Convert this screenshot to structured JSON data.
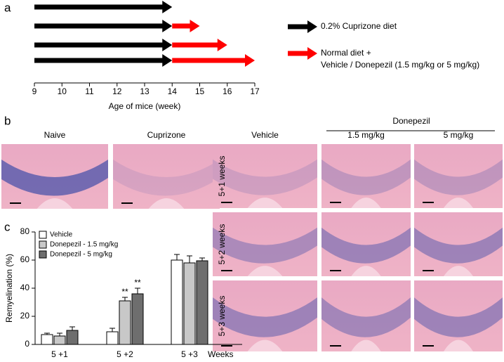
{
  "panel_labels": [
    "a",
    "b",
    "c"
  ],
  "chart_data": [
    {
      "type": "gantt",
      "xlabel": "Age of mice (week)",
      "xlim": [
        9,
        17
      ],
      "xticks": [
        9,
        10,
        11,
        12,
        13,
        14,
        15,
        16,
        17
      ],
      "series": [
        {
          "name": [
            "0.2% Cuprizone diet"
          ],
          "color": "#000000",
          "start": [
            9,
            9,
            9,
            9
          ],
          "end": [
            14,
            14,
            14,
            14
          ]
        },
        {
          "name": [
            "Normal diet +",
            "Vehicle / Donepezil (1.5 mg/kg or 5 mg/kg)"
          ],
          "color": "#ff0000",
          "start": [
            null,
            14,
            14,
            14
          ],
          "end": [
            null,
            15,
            16,
            17
          ]
        }
      ]
    },
    {
      "type": "bar",
      "ylabel": "Remyelination (%)",
      "xlabel": "Weeks",
      "categories": [
        "5 +1",
        "5 +2",
        "5 +3"
      ],
      "ylim": [
        0,
        80
      ],
      "yticks": [
        0,
        20,
        40,
        60,
        80
      ],
      "series": [
        {
          "name": "Vehicle",
          "color": "#ffffff",
          "values": [
            7,
            9,
            60
          ],
          "errors": [
            1,
            2.5,
            4
          ],
          "significance": [
            null,
            null,
            null
          ]
        },
        {
          "name": "Donepezil - 1.5 mg/kg",
          "color": "#c8c8c8",
          "values": [
            6,
            31,
            58
          ],
          "errors": [
            2,
            2.5,
            5
          ],
          "significance": [
            null,
            "**",
            null
          ]
        },
        {
          "name": "Donepezil - 5 mg/kg",
          "color": "#6e6e6e",
          "values": [
            10,
            36,
            59.5
          ],
          "errors": [
            2.5,
            4,
            2
          ],
          "significance": [
            null,
            "**",
            null
          ]
        }
      ]
    }
  ],
  "panel_b": {
    "left_columns": [
      "Naive",
      "Cuprizone"
    ],
    "group": "Donepezil",
    "columns": [
      "Vehicle",
      "1.5 mg/kg",
      "5 mg/kg"
    ],
    "rows": [
      "5+1 weeks",
      "5+2 weeks",
      "5+3 weeks"
    ]
  }
}
